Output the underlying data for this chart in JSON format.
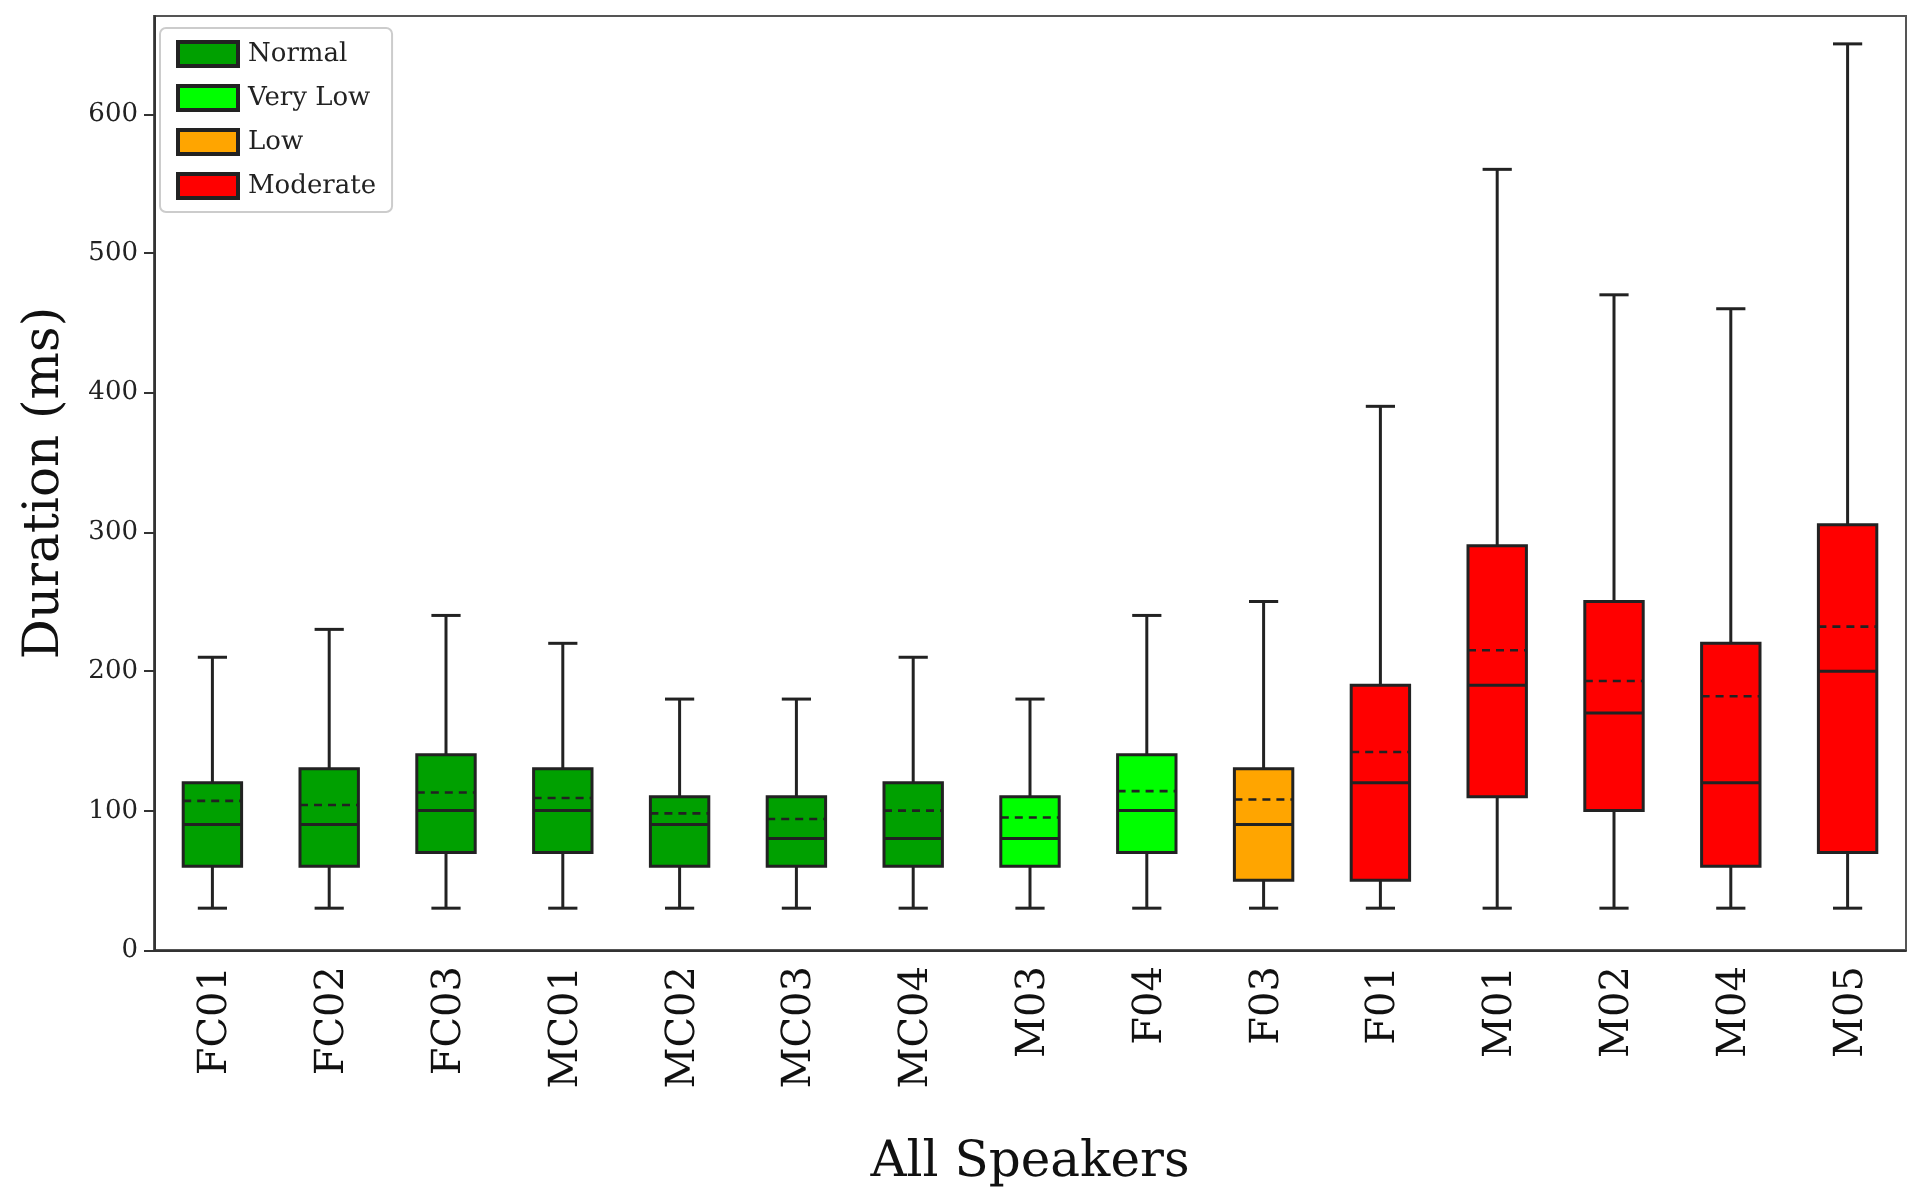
{
  "chart_data": {
    "type": "box",
    "xlabel": "All Speakers",
    "ylabel": "Duration (ms)",
    "categories": [
      "FC01",
      "FC02",
      "FC03",
      "MC01",
      "MC02",
      "MC03",
      "MC04",
      "M03",
      "F04",
      "F03",
      "F01",
      "M01",
      "M02",
      "M04",
      "M05"
    ],
    "ylim": [
      0,
      670
    ],
    "yticks": [
      0,
      100,
      200,
      300,
      400,
      500,
      600
    ],
    "grid": false,
    "legend": "top left",
    "series": [
      {
        "name": "Normal",
        "color": "#00a000",
        "boxes": [
          {
            "low": 30,
            "q1": 60,
            "median": 90,
            "q3": 120,
            "high": 210,
            "mean": 107
          },
          {
            "low": 30,
            "q1": 60,
            "median": 90,
            "q3": 130,
            "high": 230,
            "mean": 104
          },
          {
            "low": 30,
            "q1": 70,
            "median": 100,
            "q3": 140,
            "high": 240,
            "mean": 113
          },
          {
            "low": 30,
            "q1": 70,
            "median": 100,
            "q3": 130,
            "high": 220,
            "mean": 109
          },
          {
            "low": 30,
            "q1": 60,
            "median": 90,
            "q3": 110,
            "high": 180,
            "mean": 98
          },
          {
            "low": 30,
            "q1": 60,
            "median": 80,
            "q3": 110,
            "high": 180,
            "mean": 94
          },
          {
            "low": 30,
            "q1": 60,
            "median": 80,
            "q3": 120,
            "high": 210,
            "mean": 100
          },
          null,
          null,
          null,
          null,
          null,
          null,
          null,
          null
        ]
      },
      {
        "name": "Very Low",
        "color": "#00ff00",
        "boxes": [
          null,
          null,
          null,
          null,
          null,
          null,
          null,
          {
            "low": 30,
            "q1": 60,
            "median": 80,
            "q3": 110,
            "high": 180,
            "mean": 95
          },
          {
            "low": 30,
            "q1": 70,
            "median": 100,
            "q3": 140,
            "high": 240,
            "mean": 114
          },
          null,
          null,
          null,
          null,
          null,
          null
        ]
      },
      {
        "name": "Low",
        "color": "#ffa500",
        "boxes": [
          null,
          null,
          null,
          null,
          null,
          null,
          null,
          null,
          null,
          {
            "low": 30,
            "q1": 50,
            "median": 90,
            "q3": 130,
            "high": 250,
            "mean": 108
          },
          null,
          null,
          null,
          null,
          null
        ]
      },
      {
        "name": "Moderate",
        "color": "#ff0000",
        "boxes": [
          null,
          null,
          null,
          null,
          null,
          null,
          null,
          null,
          null,
          null,
          {
            "low": 30,
            "q1": 50,
            "median": 120,
            "q3": 190,
            "high": 390,
            "mean": 142
          },
          {
            "low": 30,
            "q1": 110,
            "median": 190,
            "q3": 290,
            "high": 560,
            "mean": 215
          },
          {
            "low": 30,
            "q1": 100,
            "median": 170,
            "q3": 250,
            "high": 470,
            "mean": 193
          },
          {
            "low": 30,
            "q1": 60,
            "median": 120,
            "q3": 220,
            "high": 460,
            "mean": 182
          },
          {
            "low": 30,
            "q1": 70,
            "median": 200,
            "q3": 305,
            "high": 650,
            "mean": 232
          }
        ]
      }
    ]
  }
}
